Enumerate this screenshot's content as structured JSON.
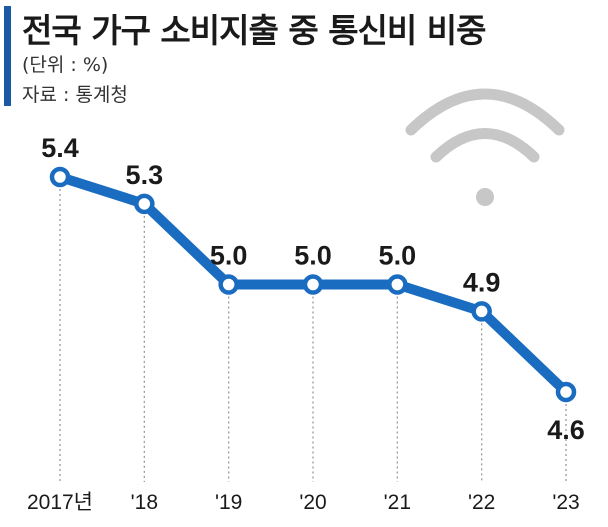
{
  "header": {
    "title": "전국 가구 소비지출 중 통신비 비중",
    "unit": "(단위 : %)",
    "source": "자료 : 통계청"
  },
  "colors": {
    "accent": "#1a5aa5",
    "line": "#1a6cc0",
    "marker_fill": "#ffffff",
    "wifi_icon": "#c7c7c7",
    "guide": "#9a9a9a"
  },
  "decoration": {
    "icon": "wifi-icon"
  },
  "chart_data": {
    "type": "line",
    "title": "전국 가구 소비지출 중 통신비 비중",
    "xlabel": "",
    "ylabel": "",
    "categories": [
      "2017년",
      "'18",
      "'19",
      "'20",
      "'21",
      "'22",
      "'23"
    ],
    "series": [
      {
        "values": [
          5.4,
          5.3,
          5.0,
          5.0,
          5.0,
          4.9,
          4.6
        ]
      }
    ],
    "data_labels": [
      "5.4",
      "5.3",
      "5.0",
      "5.0",
      "5.0",
      "4.9",
      "4.6"
    ],
    "ylim": [
      4.6,
      5.4
    ],
    "grid": false,
    "legend": "none"
  }
}
